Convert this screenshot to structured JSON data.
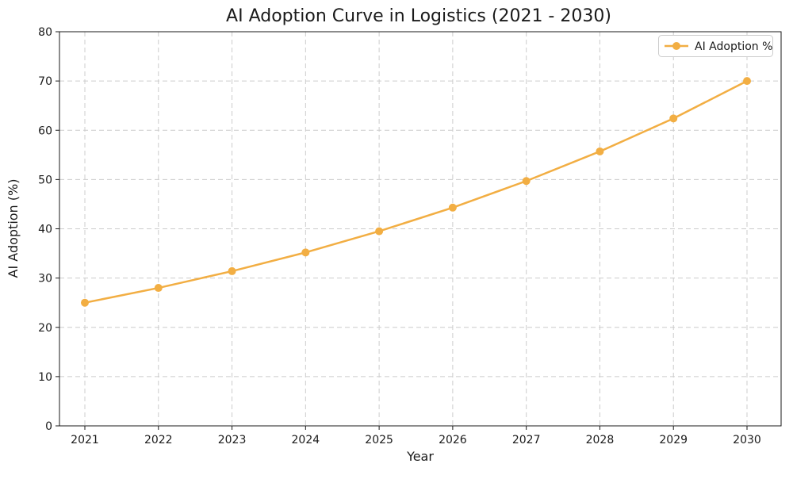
{
  "chart_data": {
    "type": "line",
    "title": "AI Adoption Curve in Logistics (2021 - 2030)",
    "xlabel": "Year",
    "ylabel": "AI Adoption (%)",
    "categories": [
      "2021",
      "2022",
      "2023",
      "2024",
      "2025",
      "2026",
      "2027",
      "2028",
      "2029",
      "2030"
    ],
    "series": [
      {
        "name": "AI Adoption %",
        "color": "#F2AE43",
        "marker": "circle",
        "values": [
          25.0,
          28.0,
          31.4,
          35.2,
          39.5,
          44.3,
          49.7,
          55.7,
          62.4,
          70.0
        ]
      }
    ],
    "ylim": [
      0,
      80
    ],
    "yticks": [
      0,
      10,
      20,
      30,
      40,
      50,
      60,
      70,
      80
    ],
    "grid": true,
    "grid_style": "dashed",
    "legend_position": "upper right",
    "colors": {
      "line": "#F2AE43",
      "grid": "#cccccc",
      "text": "#1a1a1a",
      "spine": "#1a1a1a",
      "legend_border": "#cccccc",
      "background": "#ffffff"
    }
  }
}
